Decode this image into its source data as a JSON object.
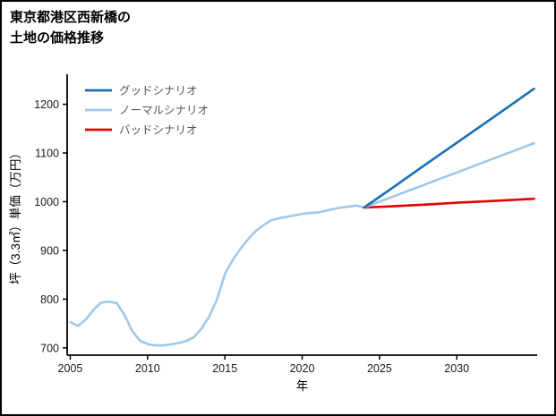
{
  "title": {
    "line1": "東京都港区西新橋の",
    "line2": "土地の価格推移"
  },
  "chart_data": {
    "type": "line",
    "title": "東京都港区西新橋の土地の価格推移",
    "xlabel": "年",
    "ylabel": "坪（3.3㎡）単価（万円）",
    "xlim": [
      2004.8,
      2035.2
    ],
    "ylim": [
      685,
      1258
    ],
    "x_ticks": [
      2005,
      2010,
      2015,
      2020,
      2025,
      2030
    ],
    "y_ticks": [
      700,
      800,
      900,
      1000,
      1100,
      1200
    ],
    "grid": false,
    "legend_position": "upper-left",
    "colors": {
      "good": "#1b6db4",
      "normal": "#a0c8e8",
      "bad": "#e60000",
      "axis": "#000000",
      "tick_text": "#1a1a1a",
      "legend_text": "#555555",
      "background": "#ffffff"
    },
    "series": [
      {
        "key": "history",
        "name": "",
        "legend": false,
        "color": "#a0c8e8",
        "x": [
          2005,
          2005.5,
          2006,
          2006.5,
          2007,
          2007.5,
          2008,
          2008.5,
          2009,
          2009.5,
          2010,
          2010.5,
          2011,
          2011.5,
          2012,
          2012.5,
          2013,
          2013.5,
          2014,
          2014.5,
          2015,
          2015.5,
          2016,
          2016.5,
          2017,
          2017.5,
          2018,
          2018.5,
          2019,
          2019.5,
          2020,
          2020.5,
          2021,
          2021.5,
          2022,
          2022.5,
          2023,
          2023.5,
          2024
        ],
        "values": [
          753,
          745,
          758,
          778,
          793,
          795,
          792,
          768,
          735,
          715,
          708,
          705,
          705,
          707,
          710,
          714,
          722,
          740,
          765,
          800,
          852,
          880,
          903,
          923,
          940,
          952,
          962,
          966,
          969,
          972,
          975,
          977,
          978,
          981,
          985,
          988,
          990,
          992,
          988
        ]
      },
      {
        "key": "bad",
        "name": "バッドシナリオ",
        "legend": true,
        "color": "#e60000",
        "x": [
          2024,
          2026,
          2028,
          2030,
          2032,
          2035
        ],
        "values": [
          988,
          991,
          994,
          998,
          1001,
          1006
        ]
      },
      {
        "key": "normal",
        "name": "ノーマルシナリオ",
        "legend": true,
        "color": "#a0c8e8",
        "x": [
          2024,
          2026,
          2028,
          2030,
          2032,
          2035
        ],
        "values": [
          988,
          1012,
          1036,
          1060,
          1084,
          1120
        ]
      },
      {
        "key": "good",
        "name": "グッドシナリオ",
        "legend": true,
        "color": "#1b6db4",
        "x": [
          2024,
          2026,
          2028,
          2030,
          2032,
          2035
        ],
        "values": [
          988,
          1032,
          1077,
          1121,
          1165,
          1232
        ]
      }
    ],
    "legend_order": [
      "good",
      "normal",
      "bad"
    ]
  }
}
